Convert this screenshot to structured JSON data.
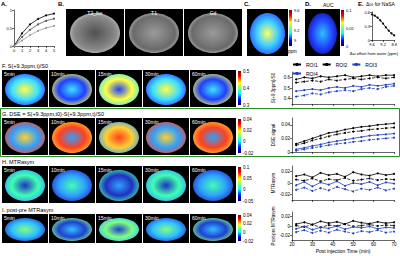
{
  "figure": {
    "panel_labels": [
      "A.",
      "B.",
      "C.",
      "D.",
      "E."
    ],
    "B_images": [
      "T2_fse",
      "T1",
      "Gd"
    ],
    "C_map": {
      "unit": "ppm",
      "range": [
        8.9,
        9.6
      ],
      "ticks": [
        9,
        9.2,
        9.4,
        9.6
      ]
    },
    "D_map": {
      "title": "AUC",
      "range": [
        0,
        0.1
      ],
      "ticks": [
        0,
        0.05,
        0.1
      ]
    },
    "rows": [
      {
        "title": "F. S(+9.3ppm,t)/S0",
        "times": [
          "5min",
          "10min",
          "15min",
          "30min",
          "60min"
        ],
        "colorbar": {
          "range": [
            0.3,
            0.5
          ],
          "ticks": [
            0.3,
            0.4,
            0.5
          ]
        }
      },
      {
        "title": "G. DSE = S(+9.3ppm,t0)-S(+9.3ppm,t)/S0",
        "times": [
          "5min",
          "10min",
          "15min",
          "30min",
          "60min"
        ],
        "colorbar": {
          "range": [
            -0.02,
            0.04
          ],
          "ticks": [
            -0.02,
            0,
            0.02,
            0.04
          ]
        }
      },
      {
        "title": "H. MTRasym",
        "times": [
          "5min",
          "10min",
          "15min",
          "30min",
          "60min"
        ],
        "colorbar": {
          "range": [
            -0.05,
            0.1
          ],
          "ticks": [
            -0.05,
            0,
            0.05,
            0.1
          ]
        }
      },
      {
        "title": "I. post-pre MTRasym",
        "times": [
          "5min",
          "10min",
          "15min",
          "30min",
          "60min"
        ],
        "colorbar": {
          "range": [
            -0.02,
            0.04
          ],
          "ticks": [
            -0.02,
            0,
            0.02,
            0.04
          ]
        }
      }
    ]
  },
  "chart_data": [
    {
      "type": "line",
      "x": [
        0,
        1,
        2,
        3,
        4,
        5
      ],
      "xlim": [
        0,
        5
      ],
      "xticks": [
        0,
        1,
        2,
        3,
        4,
        5
      ],
      "ylim": [
        0,
        1
      ],
      "yticks": [
        0,
        0.5,
        1
      ],
      "marker": "circle",
      "series": [
        {
          "color": "#000000",
          "values": [
            0,
            0.35,
            0.6,
            0.75,
            0.85,
            0.9
          ]
        },
        {
          "color": "#555555",
          "values": [
            0,
            0.25,
            0.45,
            0.6,
            0.7,
            0.76
          ]
        },
        {
          "color": "#999999",
          "values": [
            0,
            0.15,
            0.3,
            0.42,
            0.5,
            0.56
          ]
        }
      ]
    },
    {
      "type": "line",
      "title": "Δω for NaSA",
      "xlabel": "Δω offset from water (ppm)",
      "x": [
        9.6,
        9.5,
        9.4,
        9.3,
        9.2,
        9.1,
        9.0,
        8.9,
        8.8
      ],
      "xlim": [
        9.6,
        8.8
      ],
      "xticks": [
        9.6,
        9.2,
        8.8
      ],
      "ylim": [
        0,
        0.6
      ],
      "yticks": [
        0,
        0.3,
        0.6
      ],
      "marker": "circle",
      "series": [
        {
          "color": "#000000",
          "values": [
            0.55,
            0.52,
            0.48,
            0.42,
            0.35,
            0.27,
            0.2,
            0.14,
            0.1
          ]
        }
      ]
    },
    {
      "type": "line",
      "ylabel": "S(+9.3ppm)/S0",
      "x": [
        22,
        26,
        30,
        34,
        38,
        42,
        46,
        50,
        54,
        58,
        62,
        66,
        70
      ],
      "xlim": [
        20,
        70
      ],
      "xticks": [
        20,
        30,
        40,
        50,
        60,
        70
      ],
      "ylim": [
        0.35,
        0.65
      ],
      "yticks": [
        0.4,
        0.5,
        0.6
      ],
      "tick_labels": "y",
      "legend": "top",
      "marker": "circle",
      "series": [
        {
          "name": "ROI1",
          "color": "#000000",
          "line_style": "solid",
          "values": [
            0.58,
            0.6,
            0.59,
            0.61,
            0.6,
            0.61,
            0.62,
            0.6,
            0.61,
            0.62,
            0.61,
            0.62,
            0.62
          ]
        },
        {
          "name": "ROI2",
          "color": "#000000",
          "line_style": "dashed",
          "values": [
            0.55,
            0.56,
            0.57,
            0.56,
            0.58,
            0.57,
            0.58,
            0.59,
            0.58,
            0.59,
            0.6,
            0.59,
            0.6
          ]
        },
        {
          "name": "ROI3",
          "color": "#1f3fbf",
          "line_style": "solid",
          "values": [
            0.47,
            0.48,
            0.49,
            0.48,
            0.5,
            0.51,
            0.5,
            0.52,
            0.51,
            0.53,
            0.52,
            0.53,
            0.54
          ]
        },
        {
          "name": "ROI4",
          "color": "#1f3fbf",
          "line_style": "dashed",
          "values": [
            0.42,
            0.43,
            0.45,
            0.44,
            0.46,
            0.47,
            0.48,
            0.47,
            0.49,
            0.5,
            0.49,
            0.51,
            0.52
          ]
        }
      ]
    },
    {
      "type": "line",
      "ylabel": "DSE signal",
      "x": [
        22,
        26,
        30,
        34,
        38,
        42,
        46,
        50,
        54,
        58,
        62,
        66,
        70
      ],
      "xlim": [
        20,
        70
      ],
      "xticks": [
        20,
        30,
        40,
        50,
        60,
        70
      ],
      "ylim": [
        0,
        0.05
      ],
      "yticks": [
        0,
        0.02,
        0.04
      ],
      "tick_labels": "y",
      "marker": "circle",
      "series": [
        {
          "name": "ROI1",
          "color": "#000000",
          "line_style": "solid",
          "values": [
            0.012,
            0.016,
            0.02,
            0.024,
            0.028,
            0.03,
            0.033,
            0.035,
            0.037,
            0.038,
            0.04,
            0.041,
            0.042
          ]
        },
        {
          "name": "ROI2",
          "color": "#000000",
          "line_style": "dashed",
          "values": [
            0.01,
            0.013,
            0.017,
            0.02,
            0.023,
            0.026,
            0.028,
            0.03,
            0.031,
            0.033,
            0.034,
            0.035,
            0.036
          ]
        },
        {
          "name": "ROI3",
          "color": "#1f3fbf",
          "line_style": "solid",
          "values": [
            0.004,
            0.006,
            0.009,
            0.011,
            0.014,
            0.016,
            0.018,
            0.02,
            0.022,
            0.024,
            0.025,
            0.026,
            0.027
          ]
        },
        {
          "name": "ROI4",
          "color": "#1f3fbf",
          "line_style": "dashed",
          "values": [
            0.002,
            0.004,
            0.006,
            0.008,
            0.01,
            0.012,
            0.013,
            0.015,
            0.016,
            0.018,
            0.019,
            0.02,
            0.021
          ]
        }
      ]
    },
    {
      "type": "line",
      "ylabel": "MTRasym",
      "x": [
        22,
        26,
        30,
        34,
        38,
        42,
        46,
        50,
        54,
        58,
        62,
        66,
        70
      ],
      "xlim": [
        20,
        70
      ],
      "xticks": [
        20,
        30,
        40,
        50,
        60,
        70
      ],
      "ylim": [
        -0.03,
        0.03
      ],
      "yticks": [
        -0.02,
        0,
        0.02
      ],
      "tick_labels": "y",
      "marker": "circle",
      "series": [
        {
          "name": "ROI1",
          "color": "#000000",
          "line_style": "solid",
          "values": [
            0.012,
            0.015,
            0.01,
            0.018,
            0.014,
            0.016,
            0.011,
            0.019,
            0.015,
            0.013,
            0.017,
            0.014,
            0.016
          ]
        },
        {
          "name": "ROI2",
          "color": "#000000",
          "line_style": "dashed",
          "values": [
            0.006,
            0.004,
            0.008,
            0.003,
            0.007,
            0.005,
            0.009,
            0.004,
            0.006,
            0.008,
            0.005,
            0.007,
            0.006
          ]
        },
        {
          "name": "ROI3",
          "color": "#1f3fbf",
          "line_style": "solid",
          "values": [
            -0.004,
            0.002,
            -0.006,
            0.001,
            -0.003,
            0.003,
            -0.005,
            0,
            -0.002,
            0.002,
            -0.004,
            0.001,
            -0.001
          ]
        },
        {
          "name": "ROI4",
          "color": "#1f3fbf",
          "line_style": "dashed",
          "values": [
            -0.012,
            -0.008,
            -0.014,
            -0.009,
            -0.013,
            -0.007,
            -0.011,
            -0.015,
            -0.01,
            -0.012,
            -0.008,
            -0.013,
            -0.01
          ]
        }
      ]
    },
    {
      "type": "line",
      "ylabel": "Post-pre MTRasym",
      "xlabel": "Post injection Time (min)",
      "x": [
        22,
        26,
        30,
        34,
        38,
        42,
        46,
        50,
        54,
        58,
        62,
        66,
        70
      ],
      "xlim": [
        20,
        70
      ],
      "xticks": [
        20,
        30,
        40,
        50,
        60,
        70
      ],
      "ylim": [
        -0.03,
        0.03
      ],
      "yticks": [
        -0.02,
        0,
        0.02
      ],
      "marker": "circle",
      "series": [
        {
          "name": "ROI1",
          "color": "#000000",
          "line_style": "solid",
          "values": [
            0.004,
            0.008,
            0.003,
            0.01,
            0.006,
            0.009,
            0.004,
            0.011,
            0.007,
            0.005,
            0.009,
            0.006,
            0.008
          ]
        },
        {
          "name": "ROI2",
          "color": "#000000",
          "line_style": "dashed",
          "values": [
            0.001,
            -0.002,
            0.003,
            -0.003,
            0.002,
            0,
            0.004,
            -0.001,
            0.001,
            0.003,
            0,
            0.002,
            0.001
          ]
        },
        {
          "name": "ROI3",
          "color": "#1f3fbf",
          "line_style": "solid",
          "values": [
            -0.006,
            -0.001,
            -0.008,
            -0.003,
            -0.005,
            0,
            -0.007,
            -0.002,
            -0.004,
            -0.001,
            -0.006,
            -0.003,
            -0.004
          ]
        },
        {
          "name": "ROI4",
          "color": "#1f3fbf",
          "line_style": "dashed",
          "values": [
            -0.013,
            -0.009,
            -0.015,
            -0.01,
            -0.014,
            -0.008,
            -0.012,
            -0.016,
            -0.011,
            -0.013,
            -0.009,
            -0.014,
            -0.012
          ]
        }
      ]
    }
  ]
}
